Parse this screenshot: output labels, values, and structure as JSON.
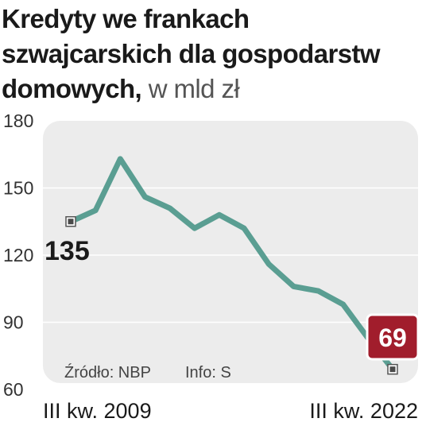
{
  "title": "Kredyty we frankach szwajcarskich dla gospodarstw domowych,",
  "subtitle": "w mld zł",
  "source": "Źródło: NBP",
  "info": "Info: S",
  "colors": {
    "line": "#5a9e92",
    "panel": "#ececec",
    "highlight": "#a11d2c"
  },
  "chart_data": {
    "type": "line",
    "title": "Kredyty we frankach szwajcarskich dla gospodarstw domowych, w mld zł",
    "x_labels": [
      "III kw. 2009",
      "III kw. 2022"
    ],
    "ylim": [
      60,
      180
    ],
    "yticks": [
      180,
      150,
      120,
      90,
      60
    ],
    "grid": true,
    "series": [
      {
        "values": [
          135,
          140,
          163,
          146,
          141,
          132,
          138,
          132,
          116,
          106,
          104,
          98,
          83,
          69
        ]
      }
    ],
    "data_labels": {
      "first": "135",
      "last": "69"
    }
  }
}
